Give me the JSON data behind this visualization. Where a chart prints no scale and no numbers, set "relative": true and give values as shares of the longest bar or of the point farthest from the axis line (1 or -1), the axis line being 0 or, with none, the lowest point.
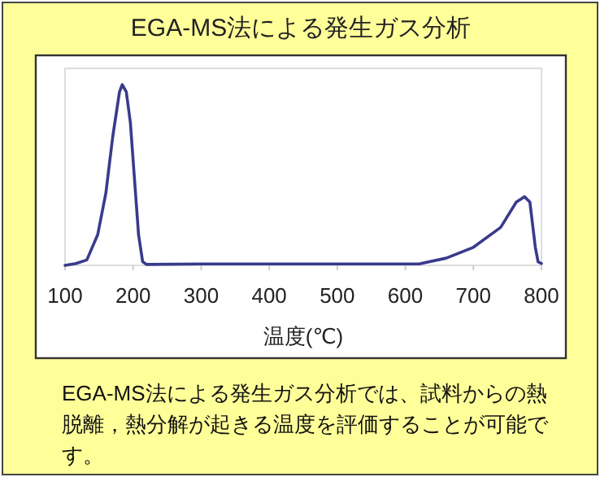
{
  "chart_data": {
    "type": "line",
    "title": "EGA-MS法による発生ガス分析",
    "xlabel": "温度(℃)",
    "annotations": [
      "EGA-MS法による発生ガス分析では、試料からの熱脱離，熱分解が起きる温度を評価することが可能です。"
    ],
    "relative": true,
    "xlim": [
      100,
      800
    ],
    "xticks": [
      100,
      200,
      300,
      400,
      500,
      600,
      700,
      800
    ],
    "x": [
      100,
      116,
      132,
      148,
      160,
      170,
      180,
      184,
      190,
      196,
      202,
      208,
      214,
      220,
      300,
      400,
      500,
      620,
      660,
      700,
      740,
      763,
      775,
      783,
      791,
      795,
      800
    ],
    "series": [
      {
        "color": "#3a3a8c",
        "values": [
          0,
          0.01,
          0.03,
          0.17,
          0.4,
          0.71,
          0.96,
          1,
          0.96,
          0.79,
          0.48,
          0.17,
          0.02,
          0.005,
          0.008,
          0.008,
          0.008,
          0.008,
          0.04,
          0.1,
          0.21,
          0.35,
          0.38,
          0.35,
          0.1,
          0.02,
          0.01
        ]
      }
    ]
  }
}
